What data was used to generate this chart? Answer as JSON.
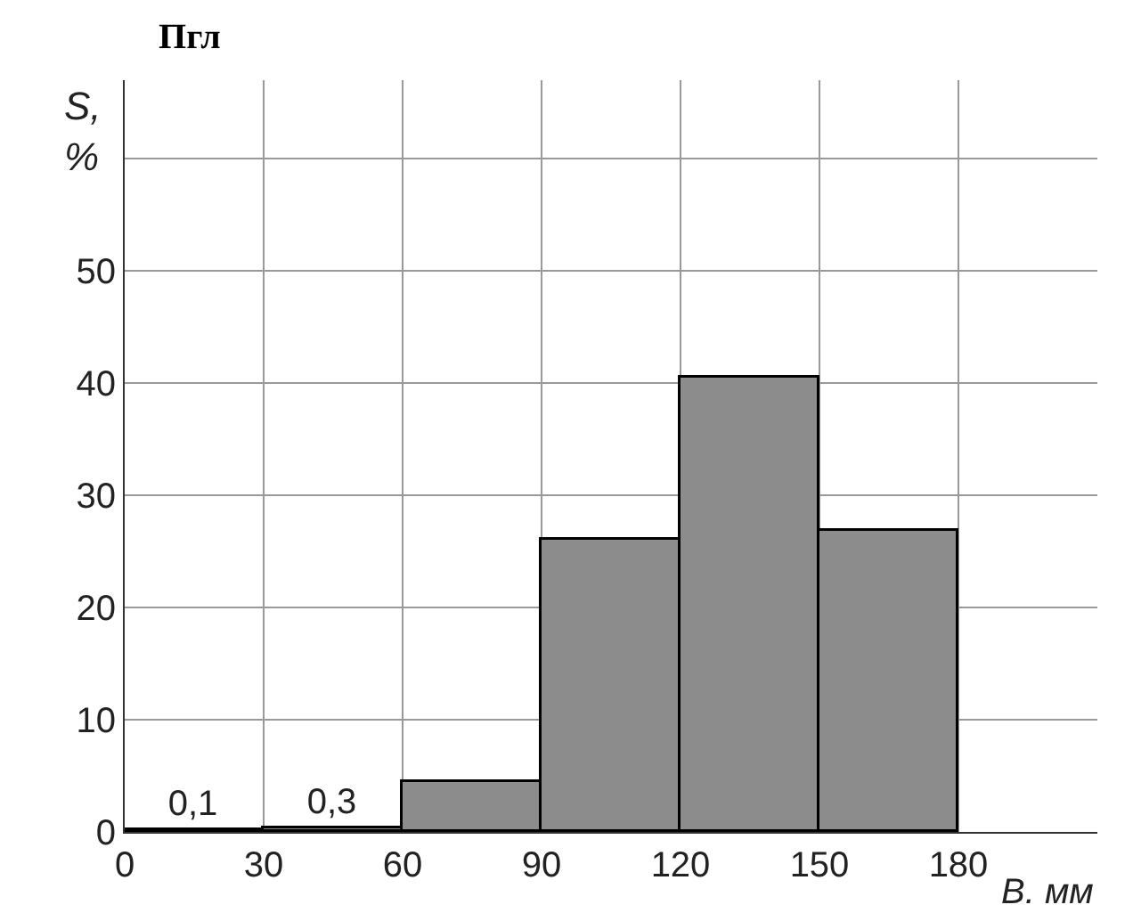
{
  "chart_data": {
    "type": "histogram",
    "title": "Пгл",
    "xlabel": "B. мм",
    "ylabel": "S, %",
    "bins": [
      0,
      30,
      60,
      90,
      120,
      150,
      180
    ],
    "values": [
      0.1,
      0.3,
      4.4,
      26.1,
      40.5,
      26.9
    ],
    "value_labels": [
      "0,1",
      "0,3",
      null,
      null,
      null,
      null
    ],
    "color": "#8c8c8c",
    "xlim": [
      0,
      210
    ],
    "xticks": [
      0,
      30,
      60,
      90,
      120,
      150,
      180
    ],
    "ylim": [
      0,
      67
    ],
    "yticks": [
      0,
      10,
      20,
      30,
      40,
      50,
      {
        "value": 60,
        "label": null
      }
    ],
    "grid": true,
    "legend": false
  }
}
